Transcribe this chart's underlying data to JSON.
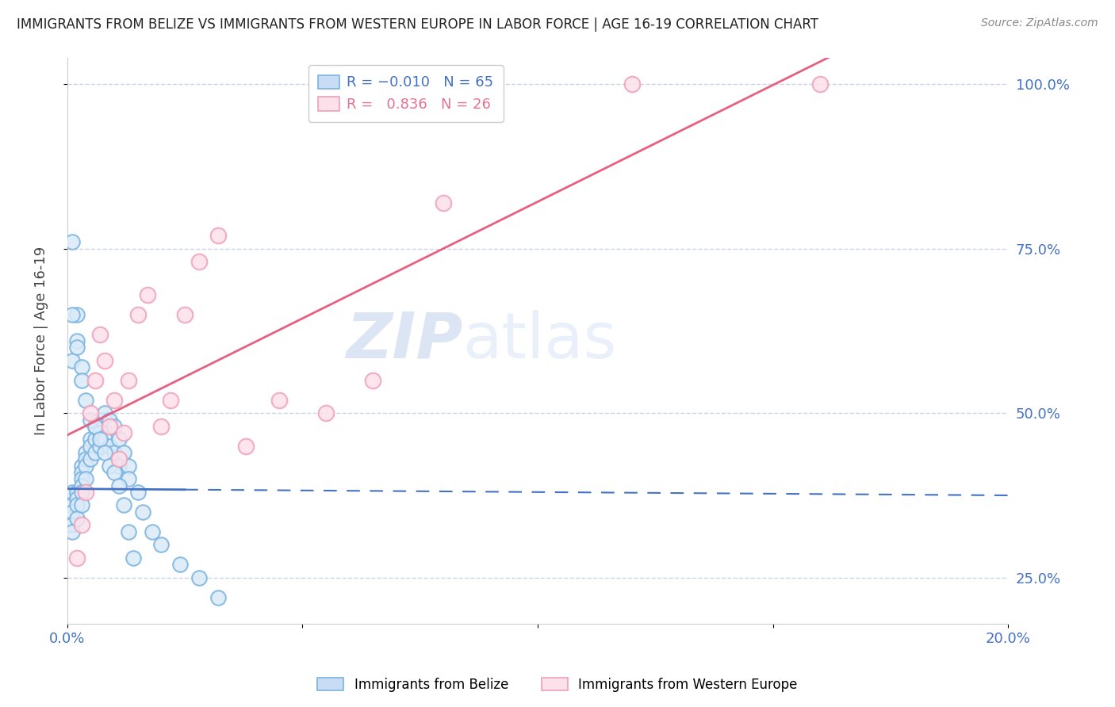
{
  "title": "IMMIGRANTS FROM BELIZE VS IMMIGRANTS FROM WESTERN EUROPE IN LABOR FORCE | AGE 16-19 CORRELATION CHART",
  "source": "Source: ZipAtlas.com",
  "ylabel": "In Labor Force | Age 16-19",
  "belize_color": "#7ab3e0",
  "western_europe_color": "#f0a0b8",
  "belize_line_color": "#4472c4",
  "western_europe_line_color": "#e86080",
  "watermark_zip": "ZIP",
  "watermark_atlas": "atlas",
  "background_color": "#ffffff",
  "grid_color": "#c8d4e8",
  "title_color": "#222222",
  "axis_label_color": "#4472c4",
  "xmin": 0.0,
  "xmax": 0.2,
  "ymin": 0.18,
  "ymax": 1.04,
  "belize_scatter_x": [
    0.001,
    0.001,
    0.001,
    0.001,
    0.001,
    0.002,
    0.002,
    0.002,
    0.002,
    0.003,
    0.003,
    0.003,
    0.003,
    0.003,
    0.003,
    0.004,
    0.004,
    0.004,
    0.004,
    0.005,
    0.005,
    0.005,
    0.006,
    0.006,
    0.006,
    0.007,
    0.007,
    0.007,
    0.008,
    0.008,
    0.009,
    0.009,
    0.01,
    0.01,
    0.011,
    0.011,
    0.012,
    0.013,
    0.013,
    0.015,
    0.016,
    0.018,
    0.02,
    0.024,
    0.028,
    0.032,
    0.001,
    0.002,
    0.001,
    0.001,
    0.002,
    0.002,
    0.003,
    0.003,
    0.004,
    0.005,
    0.006,
    0.007,
    0.008,
    0.009,
    0.01,
    0.011,
    0.012,
    0.013,
    0.014
  ],
  "belize_scatter_y": [
    0.38,
    0.36,
    0.35,
    0.33,
    0.32,
    0.38,
    0.37,
    0.36,
    0.34,
    0.42,
    0.41,
    0.4,
    0.39,
    0.38,
    0.36,
    0.44,
    0.43,
    0.42,
    0.4,
    0.46,
    0.45,
    0.43,
    0.48,
    0.46,
    0.44,
    0.49,
    0.47,
    0.45,
    0.5,
    0.46,
    0.49,
    0.45,
    0.48,
    0.44,
    0.46,
    0.42,
    0.44,
    0.42,
    0.4,
    0.38,
    0.35,
    0.32,
    0.3,
    0.27,
    0.25,
    0.22,
    0.76,
    0.65,
    0.65,
    0.58,
    0.61,
    0.6,
    0.57,
    0.55,
    0.52,
    0.49,
    0.48,
    0.46,
    0.44,
    0.42,
    0.41,
    0.39,
    0.36,
    0.32,
    0.28
  ],
  "we_scatter_x": [
    0.002,
    0.003,
    0.004,
    0.005,
    0.006,
    0.007,
    0.008,
    0.009,
    0.01,
    0.011,
    0.012,
    0.013,
    0.015,
    0.017,
    0.02,
    0.022,
    0.025,
    0.028,
    0.032,
    0.038,
    0.045,
    0.055,
    0.065,
    0.08,
    0.12,
    0.16
  ],
  "we_scatter_y": [
    0.28,
    0.33,
    0.38,
    0.5,
    0.55,
    0.62,
    0.58,
    0.48,
    0.52,
    0.43,
    0.47,
    0.55,
    0.65,
    0.68,
    0.48,
    0.52,
    0.65,
    0.73,
    0.77,
    0.45,
    0.52,
    0.5,
    0.55,
    0.82,
    1.0,
    1.0
  ],
  "yticks": [
    0.25,
    0.5,
    0.75,
    1.0
  ],
  "ytick_labels": [
    "25.0%",
    "50.0%",
    "75.0%",
    "100.0%"
  ],
  "xtick_labels_show": [
    "0.0%",
    "20.0%"
  ]
}
